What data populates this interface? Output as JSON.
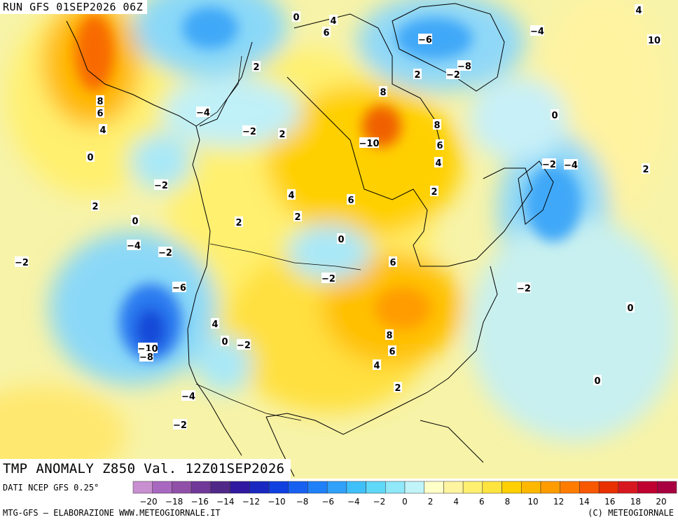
{
  "run_label": "RUN GFS 01SEP2026 06Z",
  "title": "TMP ANOMALY Z850 Val. 12Z01SEP2026",
  "dati": "DATI NCEP GFS 0.25°",
  "footer_left": "MTG-GFS — ELABORAZIONE WWW.METEOGIORNALE.IT",
  "footer_right": "(C) METEOGIORNALE",
  "legend": {
    "colors": [
      "#c890d0",
      "#a868c0",
      "#9050a8",
      "#703898",
      "#502888",
      "#3018a0",
      "#1828c0",
      "#1040e0",
      "#1860f0",
      "#2080f8",
      "#30a0f8",
      "#40c0f8",
      "#60d8f8",
      "#90e8f8",
      "#c0f4f8",
      "#ffffc8",
      "#fff4a0",
      "#fff070",
      "#ffe440",
      "#ffd000",
      "#ffb800",
      "#ff9c00",
      "#ff7c00",
      "#f85800",
      "#e83000",
      "#d81820",
      "#c00030",
      "#a80040"
    ],
    "tick_labels": [
      "−20",
      "−18",
      "−16",
      "−14",
      "−12",
      "−10",
      "−8",
      "−6",
      "−4",
      "−2",
      "0",
      "2",
      "4",
      "6",
      "8",
      "10",
      "12",
      "14",
      "16",
      "18",
      "20"
    ]
  },
  "contour_labels": [
    "0",
    "4",
    "6",
    "−4",
    "−6",
    "−8",
    "−2",
    "2",
    "4",
    "10",
    "8",
    "6",
    "4",
    "0",
    "−4",
    "−2",
    "2",
    "2",
    "8",
    "−10",
    "8",
    "6",
    "4",
    "−2",
    "−4",
    "2",
    "−2",
    "0",
    "2",
    "4",
    "6",
    "2",
    "2",
    "0",
    "−4",
    "−2",
    "−2",
    "−6",
    "6",
    "−2",
    "2",
    "−2",
    "0",
    "4",
    "0",
    "−2",
    "−10",
    "−8",
    "8",
    "6",
    "4",
    "0",
    "0",
    "2",
    "−4",
    "−2"
  ]
}
